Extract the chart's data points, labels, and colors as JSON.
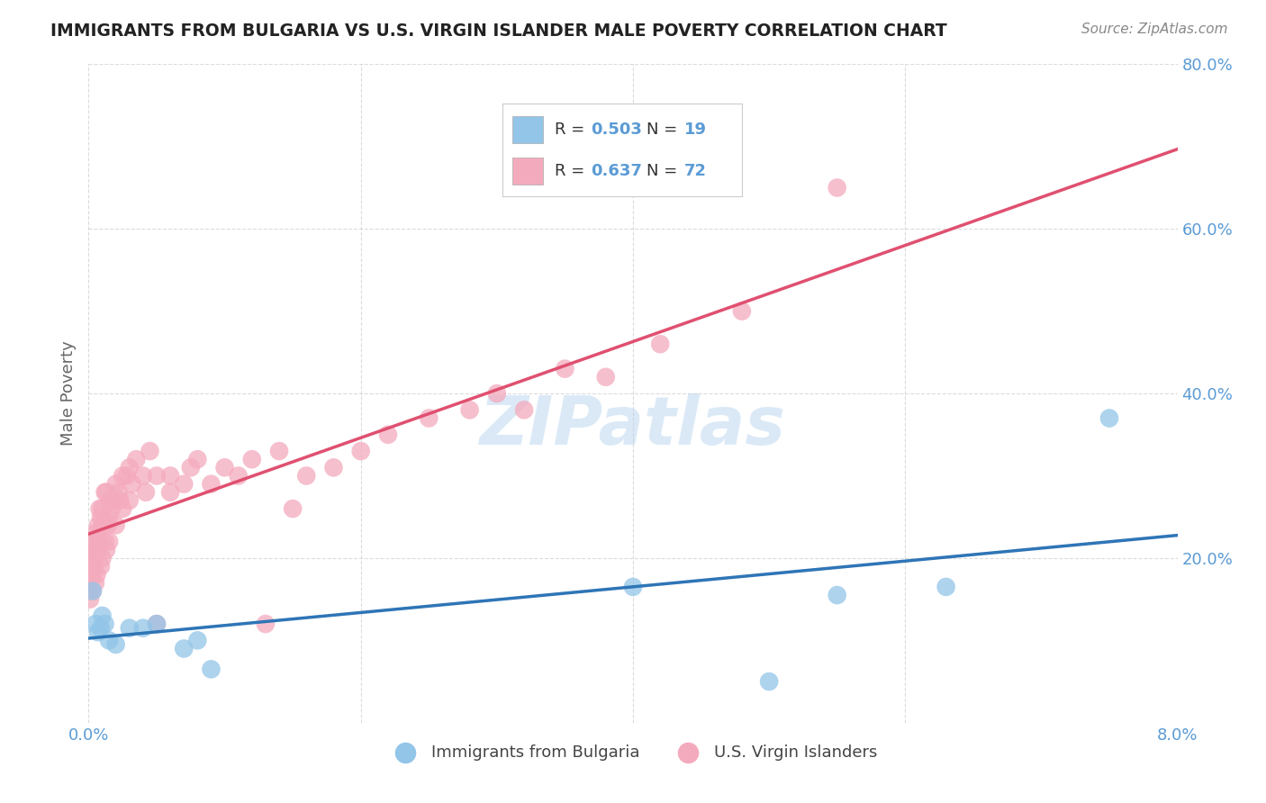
{
  "title": "IMMIGRANTS FROM BULGARIA VS U.S. VIRGIN ISLANDER MALE POVERTY CORRELATION CHART",
  "source": "Source: ZipAtlas.com",
  "ylabel": "Male Poverty",
  "x_min": 0.0,
  "x_max": 0.08,
  "y_min": 0.0,
  "y_max": 0.8,
  "x_ticks": [
    0.0,
    0.02,
    0.04,
    0.06,
    0.08
  ],
  "x_tick_labels": [
    "0.0%",
    "",
    "",
    "",
    "8.0%"
  ],
  "y_ticks": [
    0.0,
    0.2,
    0.4,
    0.6,
    0.8
  ],
  "y_tick_labels": [
    "",
    "20.0%",
    "40.0%",
    "60.0%",
    "80.0%"
  ],
  "series1_name": "Immigrants from Bulgaria",
  "series1_color": "#92C5E8",
  "series1_line_color": "#2E75B6",
  "series2_name": "U.S. Virgin Islanders",
  "series2_color": "#F4AABD",
  "series2_line_color": "#E05070",
  "series1_x": [
    0.0003,
    0.0005,
    0.0007,
    0.0009,
    0.001,
    0.0012,
    0.0015,
    0.002,
    0.003,
    0.004,
    0.005,
    0.007,
    0.008,
    0.009,
    0.04,
    0.05,
    0.055,
    0.063,
    0.075
  ],
  "series1_y": [
    0.16,
    0.12,
    0.11,
    0.115,
    0.13,
    0.12,
    0.1,
    0.095,
    0.115,
    0.115,
    0.12,
    0.09,
    0.1,
    0.065,
    0.165,
    0.05,
    0.155,
    0.165,
    0.37
  ],
  "series2_x": [
    0.0001,
    0.0002,
    0.0002,
    0.0003,
    0.0003,
    0.0004,
    0.0004,
    0.0005,
    0.0005,
    0.0005,
    0.0006,
    0.0006,
    0.0007,
    0.0007,
    0.0008,
    0.0008,
    0.0009,
    0.0009,
    0.001,
    0.001,
    0.001,
    0.0012,
    0.0012,
    0.0013,
    0.0013,
    0.0014,
    0.0015,
    0.0015,
    0.0016,
    0.0017,
    0.0018,
    0.002,
    0.002,
    0.0022,
    0.0023,
    0.0025,
    0.0025,
    0.0028,
    0.003,
    0.003,
    0.0032,
    0.0035,
    0.004,
    0.0042,
    0.0045,
    0.005,
    0.005,
    0.006,
    0.006,
    0.007,
    0.0075,
    0.008,
    0.009,
    0.01,
    0.011,
    0.012,
    0.013,
    0.014,
    0.015,
    0.016,
    0.018,
    0.02,
    0.022,
    0.025,
    0.028,
    0.03,
    0.032,
    0.035,
    0.038,
    0.042,
    0.048,
    0.055
  ],
  "series2_y": [
    0.15,
    0.18,
    0.2,
    0.16,
    0.2,
    0.19,
    0.22,
    0.17,
    0.21,
    0.23,
    0.18,
    0.22,
    0.21,
    0.24,
    0.22,
    0.26,
    0.19,
    0.25,
    0.2,
    0.24,
    0.26,
    0.22,
    0.28,
    0.21,
    0.28,
    0.24,
    0.22,
    0.25,
    0.27,
    0.26,
    0.27,
    0.24,
    0.29,
    0.28,
    0.27,
    0.3,
    0.26,
    0.3,
    0.27,
    0.31,
    0.29,
    0.32,
    0.3,
    0.28,
    0.33,
    0.12,
    0.3,
    0.28,
    0.3,
    0.29,
    0.31,
    0.32,
    0.29,
    0.31,
    0.3,
    0.32,
    0.12,
    0.33,
    0.26,
    0.3,
    0.31,
    0.33,
    0.35,
    0.37,
    0.38,
    0.4,
    0.38,
    0.43,
    0.42,
    0.46,
    0.5,
    0.65
  ],
  "watermark": "ZIPatlas",
  "bg_color": "#FFFFFF",
  "grid_color": "#CCCCCC",
  "tick_label_color": "#5B9BD5",
  "axis_label_color": "#666666",
  "r1": "0.503",
  "n1": "19",
  "r2": "0.637",
  "n2": "72"
}
